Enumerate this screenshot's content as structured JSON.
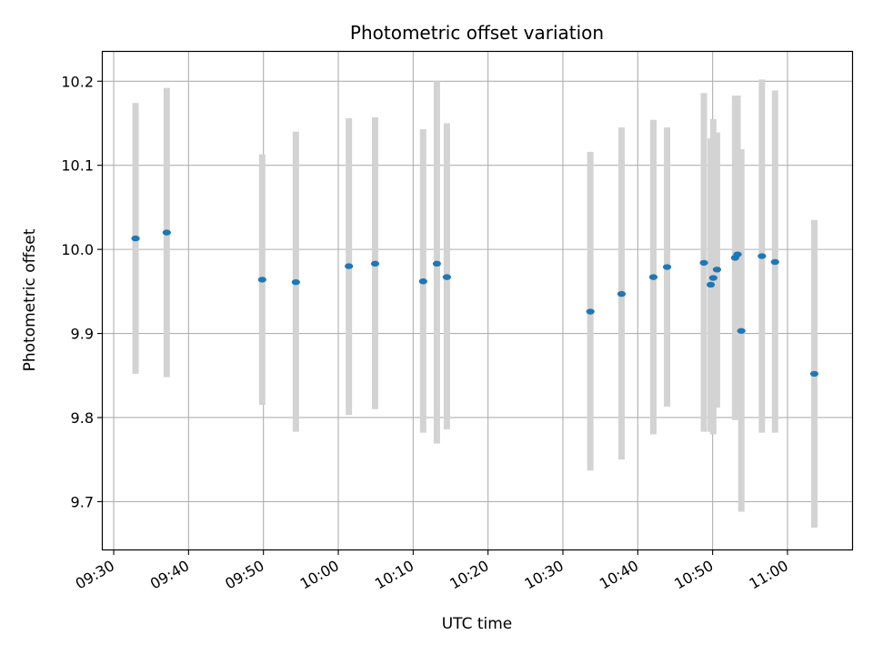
{
  "chart_data": {
    "type": "scatter",
    "title": "Photometric offset variation",
    "xlabel": "UTC time",
    "ylabel": "Photometric offset",
    "x_tick_labels": [
      "09:30",
      "09:40",
      "09:50",
      "10:00",
      "10:10",
      "10:20",
      "10:30",
      "10:40",
      "10:50",
      "11:00"
    ],
    "y_tick_labels": [
      "9.7",
      "9.8",
      "9.9",
      "10.0",
      "10.1",
      "10.2"
    ],
    "xlim": [
      "09:28:25",
      "11:08:45"
    ],
    "ylim": [
      9.642,
      10.236
    ],
    "grid": true,
    "colors": {
      "point": "#1f77b4",
      "errorbar": "#d3d3d3",
      "grid": "#b0b0b0"
    },
    "points": [
      {
        "x": "09:32:55",
        "y": 10.013,
        "err_low": 9.852,
        "err_high": 10.174
      },
      {
        "x": "09:37:05",
        "y": 10.02,
        "err_low": 9.848,
        "err_high": 10.192
      },
      {
        "x": "09:49:50",
        "y": 9.964,
        "err_low": 9.815,
        "err_high": 10.113
      },
      {
        "x": "09:54:20",
        "y": 9.961,
        "err_low": 9.783,
        "err_high": 10.14
      },
      {
        "x": "10:01:25",
        "y": 9.98,
        "err_low": 9.803,
        "err_high": 10.156
      },
      {
        "x": "10:04:55",
        "y": 9.983,
        "err_low": 9.81,
        "err_high": 10.157
      },
      {
        "x": "10:11:20",
        "y": 9.962,
        "err_low": 9.782,
        "err_high": 10.143
      },
      {
        "x": "10:13:10",
        "y": 9.983,
        "err_low": 9.769,
        "err_high": 10.2
      },
      {
        "x": "10:14:30",
        "y": 9.967,
        "err_low": 9.786,
        "err_high": 10.15
      },
      {
        "x": "10:33:40",
        "y": 9.926,
        "err_low": 9.737,
        "err_high": 10.116
      },
      {
        "x": "10:37:50",
        "y": 9.947,
        "err_low": 9.75,
        "err_high": 10.145
      },
      {
        "x": "10:42:05",
        "y": 9.967,
        "err_low": 9.78,
        "err_high": 10.154
      },
      {
        "x": "10:43:55",
        "y": 9.979,
        "err_low": 9.813,
        "err_high": 10.145
      },
      {
        "x": "10:48:50",
        "y": 9.984,
        "err_low": 9.783,
        "err_high": 10.186
      },
      {
        "x": "10:49:45",
        "y": 9.958,
        "err_low": 9.783,
        "err_high": 10.132
      },
      {
        "x": "10:50:05",
        "y": 9.966,
        "err_low": 9.78,
        "err_high": 10.155
      },
      {
        "x": "10:50:35",
        "y": 9.976,
        "err_low": 9.812,
        "err_high": 10.139
      },
      {
        "x": "10:53:00",
        "y": 9.99,
        "err_low": 9.797,
        "err_high": 10.183
      },
      {
        "x": "10:53:20",
        "y": 9.994,
        "err_low": 9.805,
        "err_high": 10.183
      },
      {
        "x": "10:53:50",
        "y": 9.903,
        "err_low": 9.688,
        "err_high": 10.119
      },
      {
        "x": "10:56:35",
        "y": 9.992,
        "err_low": 9.782,
        "err_high": 10.202
      },
      {
        "x": "10:58:20",
        "y": 9.985,
        "err_low": 9.782,
        "err_high": 10.189
      },
      {
        "x": "11:03:35",
        "y": 9.852,
        "err_low": 9.669,
        "err_high": 10.035
      }
    ]
  }
}
